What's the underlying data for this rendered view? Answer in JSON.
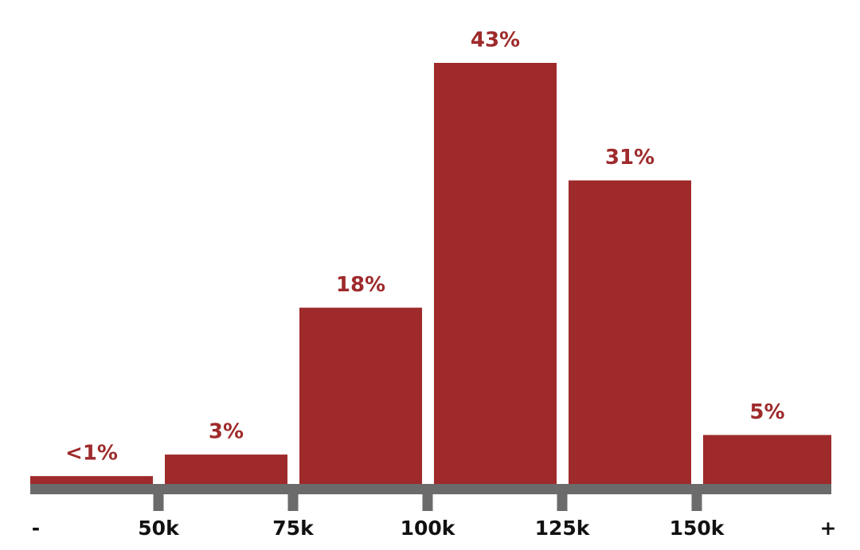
{
  "chart_data": {
    "type": "histogram",
    "bin_labels": [
      "-",
      "50k",
      "75k",
      "100k",
      "125k",
      "150k",
      "+"
    ],
    "values": [
      0.8,
      3,
      18,
      43,
      31,
      5
    ],
    "value_labels": [
      "<1%",
      "3%",
      "18%",
      "43%",
      "31%",
      "5%"
    ],
    "color": "#9e2a2b",
    "axis_color": "#6b6b6b"
  }
}
